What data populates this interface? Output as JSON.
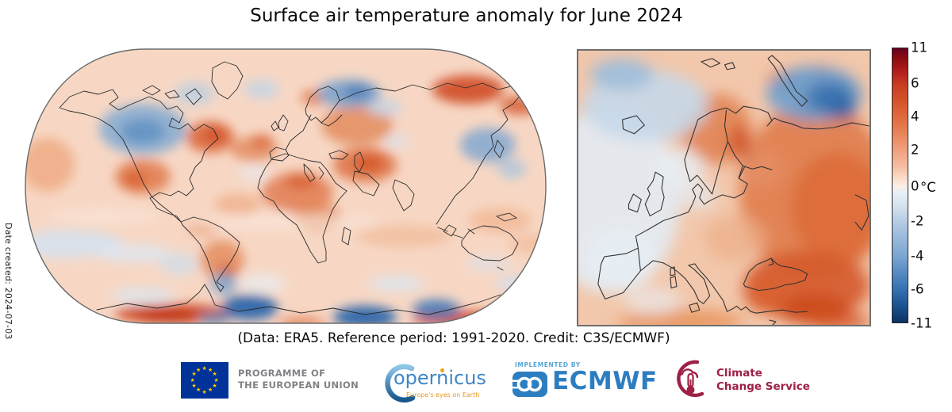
{
  "title": "Surface air temperature anomaly for June 2024",
  "side_note": "Date created: 2024-07-03",
  "caption": "(Data: ERA5.  Reference period: 1991-2020.  Credit: C3S/ECMWF)",
  "colorbar": {
    "unit": "°C",
    "ticks": [
      {
        "label": "11",
        "pos_pct": 0
      },
      {
        "label": "6",
        "pos_pct": 13
      },
      {
        "label": "4",
        "pos_pct": 25
      },
      {
        "label": "2",
        "pos_pct": 37.2
      },
      {
        "label": "0",
        "pos_pct": 50.3
      },
      {
        "label": "-2",
        "pos_pct": 63
      },
      {
        "label": "-4",
        "pos_pct": 75.7
      },
      {
        "label": "-6",
        "pos_pct": 87.6
      },
      {
        "label": "-11",
        "pos_pct": 100
      }
    ],
    "top_color": "#67001f",
    "zero_color": "#f9efe8",
    "bottom_color": "#0c3263"
  },
  "chart_data": {
    "type": "heatmap",
    "title": "Surface air temperature anomaly for June 2024",
    "variable": "Surface air temperature anomaly",
    "period": "June 2024",
    "dataset": "ERA5",
    "reference_period": "1991-2020",
    "credit": "C3S/ECMWF",
    "unit": "°C",
    "scale_ticks": [
      11,
      6,
      4,
      2,
      0,
      -2,
      -4,
      -6,
      -11
    ],
    "scale_range": [
      -11,
      11
    ],
    "palette": "diverging blue-white-red",
    "panels": [
      {
        "name": "world-map",
        "projection": "Robinson",
        "extent": "global"
      },
      {
        "name": "europe-map",
        "projection": "rectangular",
        "extent": "Europe"
      }
    ],
    "readings_estimated_from_colors": [
      {
        "region": "Central and northern Canada",
        "anomaly_c": -2
      },
      {
        "region": "Eastern Canada (Quebec/Labrador)",
        "anomaly_c": 2
      },
      {
        "region": "Barents and Kara Seas",
        "anomaly_c": -4
      },
      {
        "region": "Northeastern Siberia",
        "anomaly_c": 4
      },
      {
        "region": "Sea of Okhotsk region",
        "anomaly_c": -2
      },
      {
        "region": "Eastern equatorial Pacific",
        "anomaly_c": -1
      },
      {
        "region": "Middle East and Eastern Europe",
        "anomaly_c": 3
      },
      {
        "region": "Scandinavia (Gulf of Bothnia coast)",
        "anomaly_c": 3
      },
      {
        "region": "Southeastern Europe and Turkey",
        "anomaly_c": 4
      },
      {
        "region": "Parts of Antarctic coast",
        "anomaly_c": -8
      },
      {
        "region": "Antarctic warm bands",
        "anomaly_c": 6
      },
      {
        "region": "Southern tip of South America",
        "anomaly_c": -3
      },
      {
        "region": "Most global oceans",
        "anomaly_c": 1
      }
    ]
  },
  "footer": {
    "eu_programme": {
      "line1": "PROGRAMME OF",
      "line2": "THE EUROPEAN UNION"
    },
    "copernicus": {
      "wordmark": "opernicus",
      "tagline": "Europe's eyes on Earth"
    },
    "ecmwf": {
      "implemented_by": "IMPLEMENTED BY",
      "wordmark": "ECMWF"
    },
    "c3s": {
      "line1": "Climate",
      "line2": "Change Service"
    }
  }
}
